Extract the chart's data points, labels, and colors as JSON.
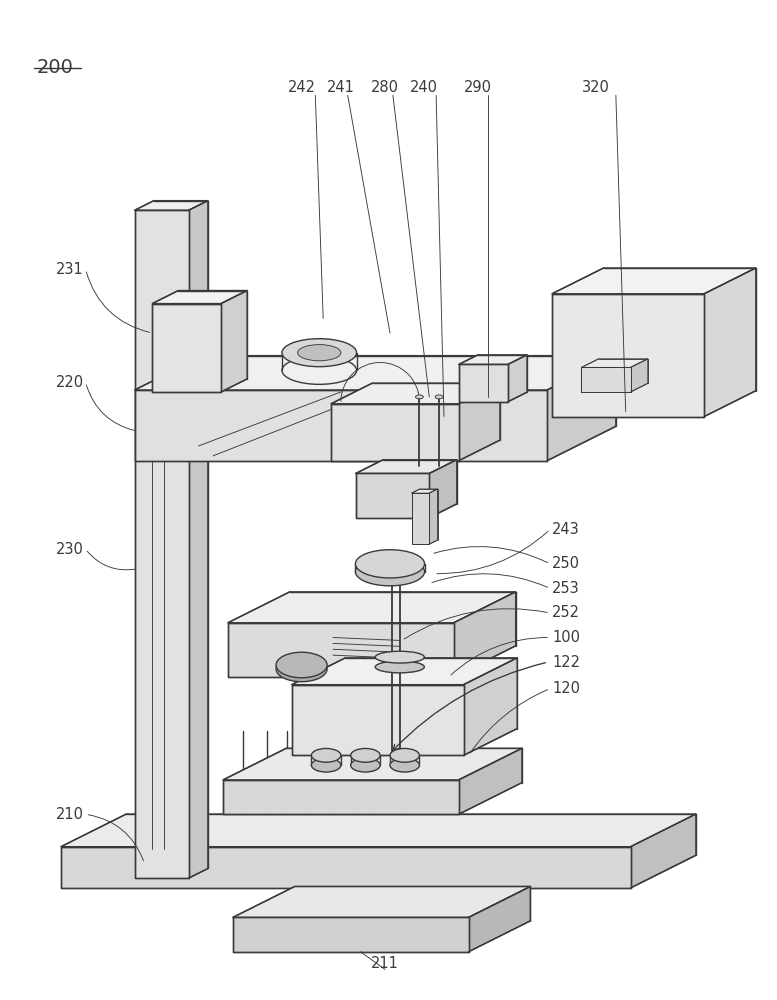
{
  "bg": "#ffffff",
  "lc": "#3a3a3a",
  "lw": 1.0,
  "tlw": 0.65,
  "fig_w": 7.77,
  "fig_h": 10.0,
  "dpi": 100,
  "fs": 10.5
}
